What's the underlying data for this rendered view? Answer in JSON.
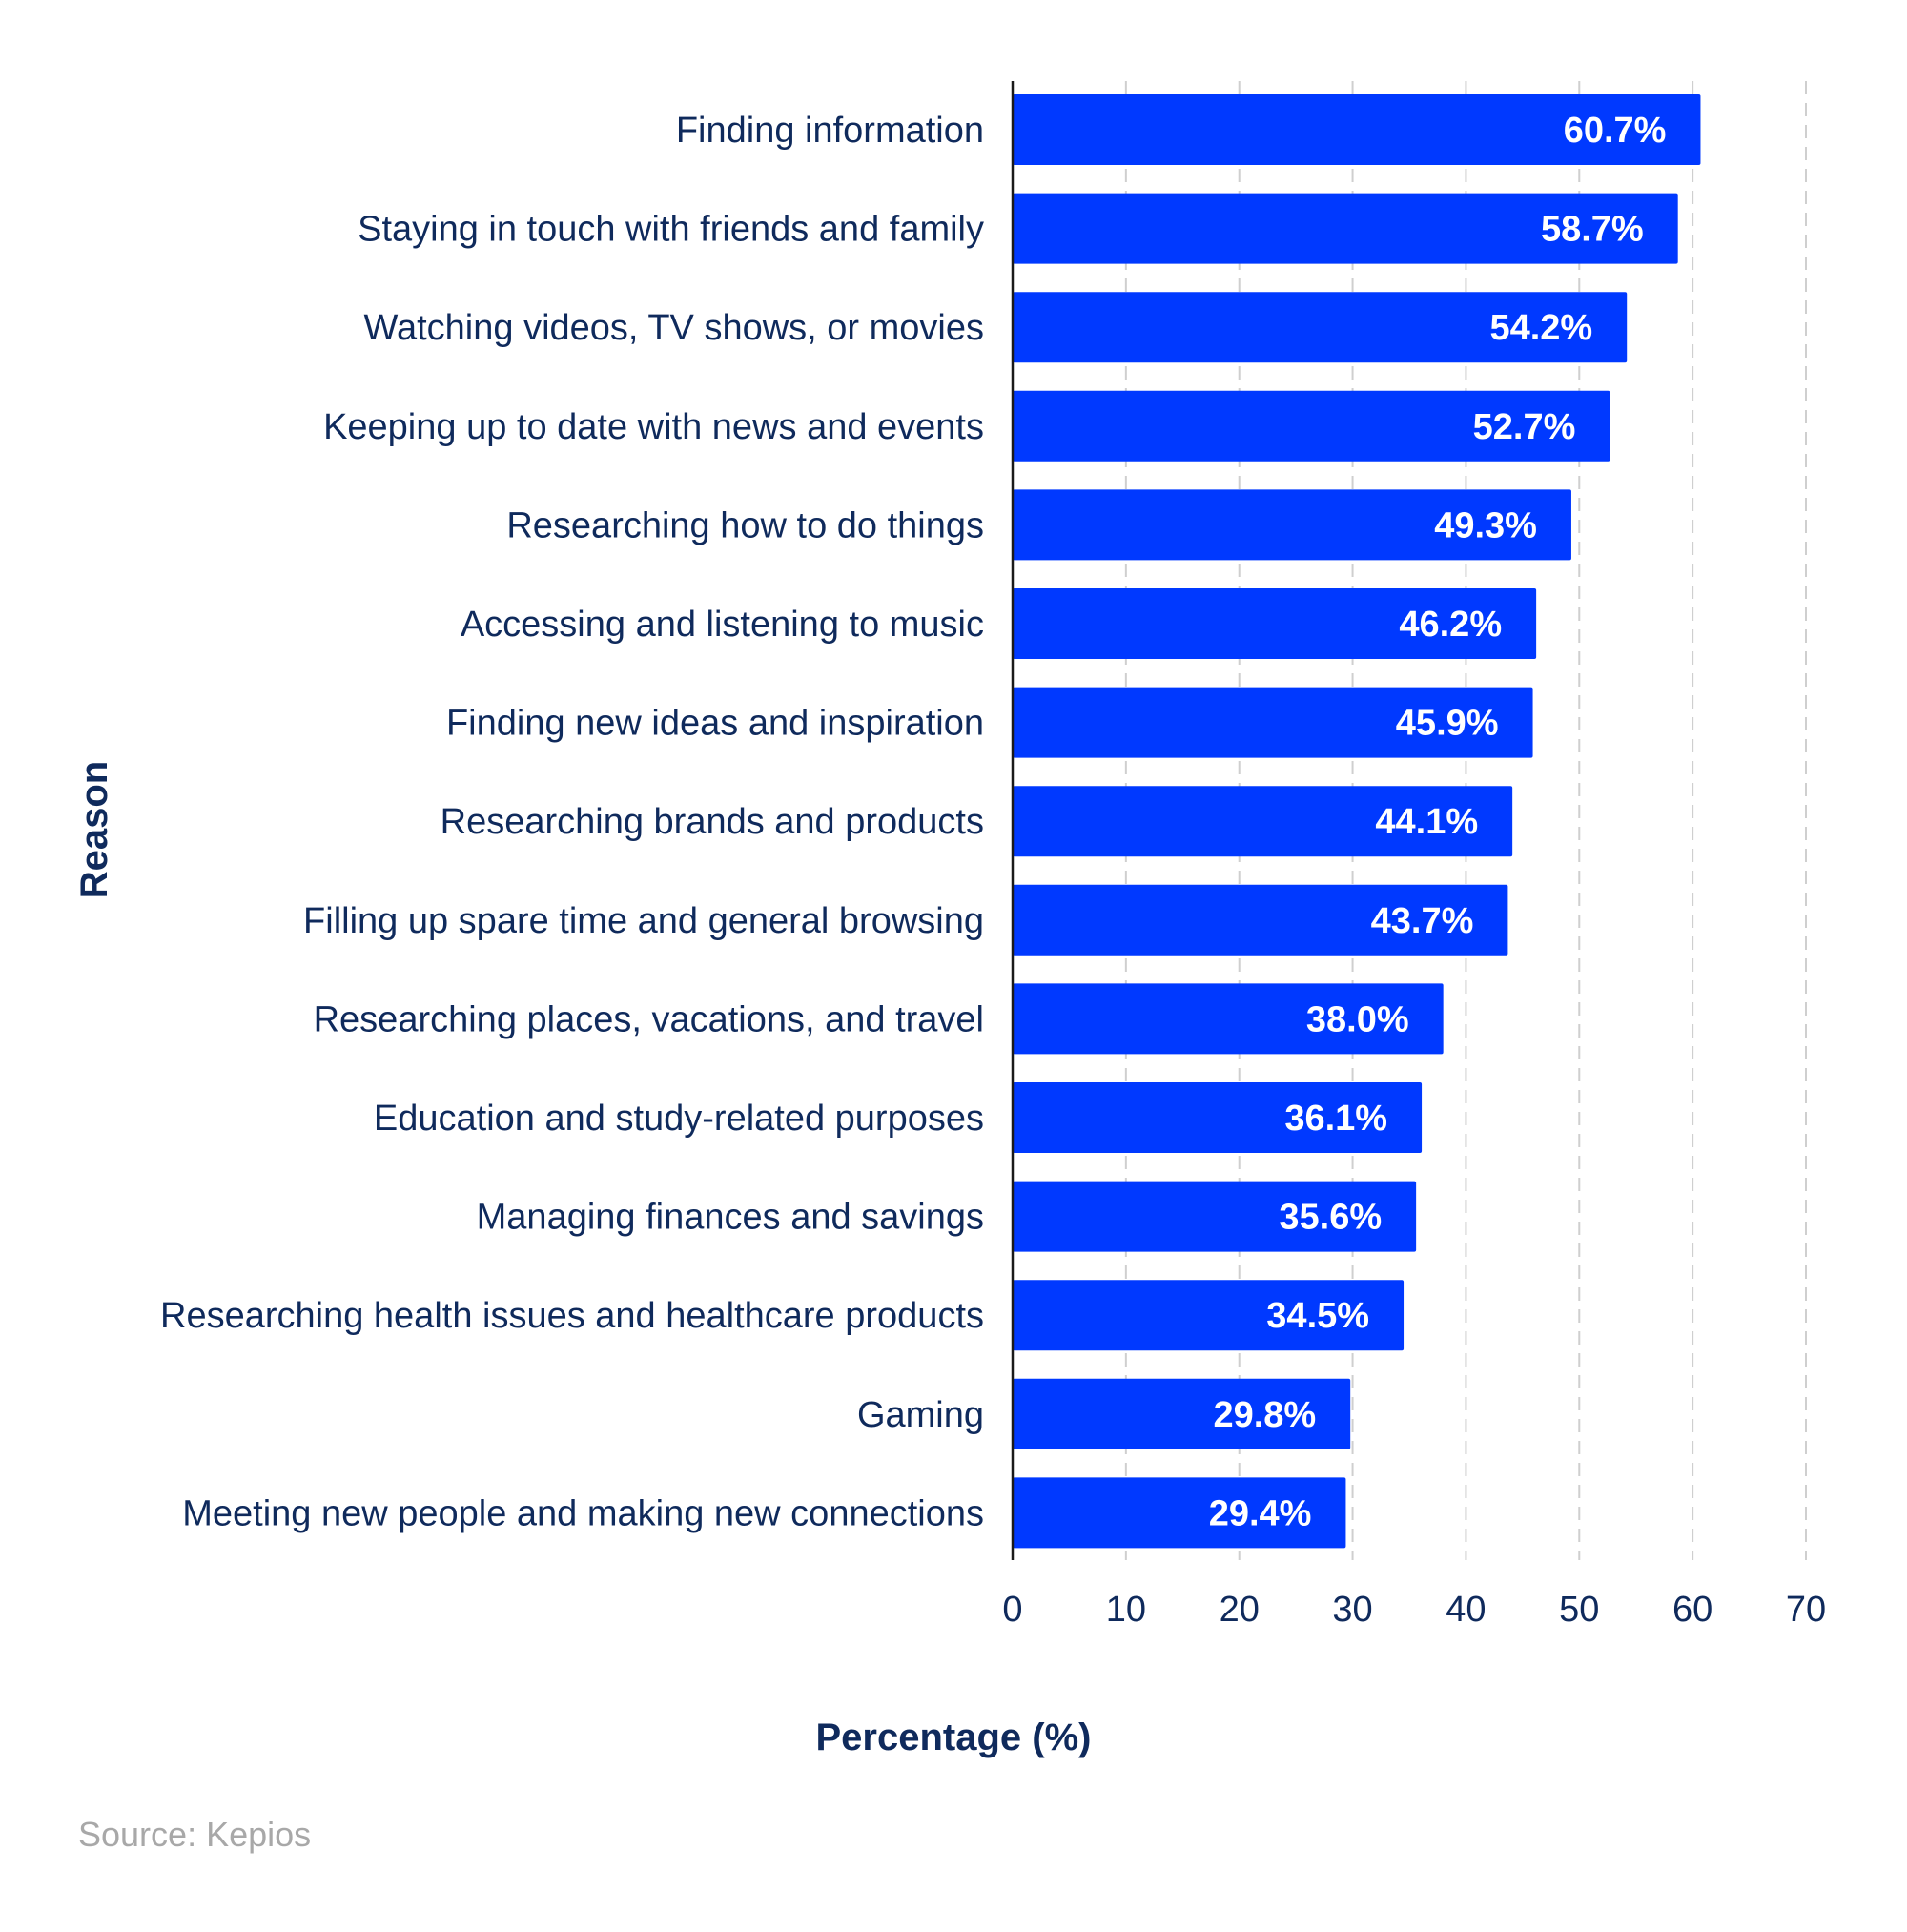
{
  "colors": {
    "bar": "#0039ff",
    "text": "#0f2a5c",
    "grid": "#cfcfcf",
    "axis": "#1a1a1a",
    "source": "#a8a8a8",
    "value_label": "#ffffff"
  },
  "chart_data": {
    "type": "bar",
    "orientation": "horizontal",
    "categories": [
      "Finding information",
      "Staying in touch with friends and family",
      "Watching videos, TV shows, or movies",
      "Keeping up to date with news and events",
      "Researching how to do things",
      "Accessing and listening to music",
      "Finding new ideas and inspiration",
      "Researching brands and products",
      "Filling up spare time and general browsing",
      "Researching places, vacations, and travel",
      "Education and study-related purposes",
      "Managing finances and savings",
      "Researching health issues and healthcare products",
      "Gaming",
      "Meeting new people and making new connections"
    ],
    "values": [
      60.7,
      58.7,
      54.2,
      52.7,
      49.3,
      46.2,
      45.9,
      44.1,
      43.7,
      38.0,
      36.1,
      35.6,
      34.5,
      29.8,
      29.4
    ],
    "value_labels": [
      "60.7%",
      "58.7%",
      "54.2%",
      "52.7%",
      "49.3%",
      "46.2%",
      "45.9%",
      "44.1%",
      "43.7%",
      "38.0%",
      "36.1%",
      "35.6%",
      "34.5%",
      "29.8%",
      "29.4%"
    ],
    "xlabel": "Percentage (%)",
    "ylabel": "Reason",
    "xlim": [
      0,
      70
    ],
    "xticks": [
      0,
      10,
      20,
      30,
      40,
      50,
      60,
      70
    ],
    "grid": "vertical dashed",
    "source": "Source: Kepios"
  }
}
